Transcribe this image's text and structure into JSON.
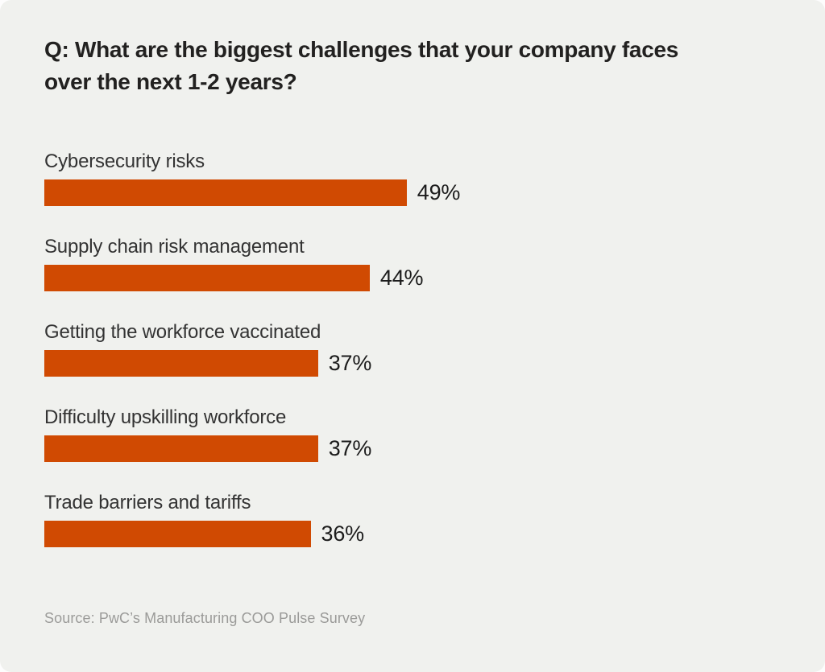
{
  "page": {
    "card_background": "#f0f1ee",
    "outer_background": "#fdfdfd"
  },
  "title": {
    "line1": "Q: What are the biggest challenges that your company faces",
    "line2": "over the next 1-2 years?"
  },
  "chart_data": {
    "type": "bar",
    "orientation": "horizontal",
    "title": "Q: What are the biggest challenges that your company faces over the next 1-2 years?",
    "categories": [
      "Cybersecurity risks",
      "Supply chain risk management",
      "Getting the workforce vaccinated",
      "Difficulty upskilling workforce",
      "Trade barriers and tariffs"
    ],
    "values": [
      49,
      44,
      37,
      37,
      36
    ],
    "value_labels": [
      "49%",
      "44%",
      "37%",
      "37%",
      "36%"
    ],
    "value_suffix": "%",
    "bar_color": "#d04a02",
    "xlim": [
      0,
      100
    ],
    "grid": false,
    "legend": false,
    "value_label_position": "right-of-bar"
  },
  "source": {
    "text": "Source: PwC’s Manufacturing COO Pulse Survey"
  }
}
